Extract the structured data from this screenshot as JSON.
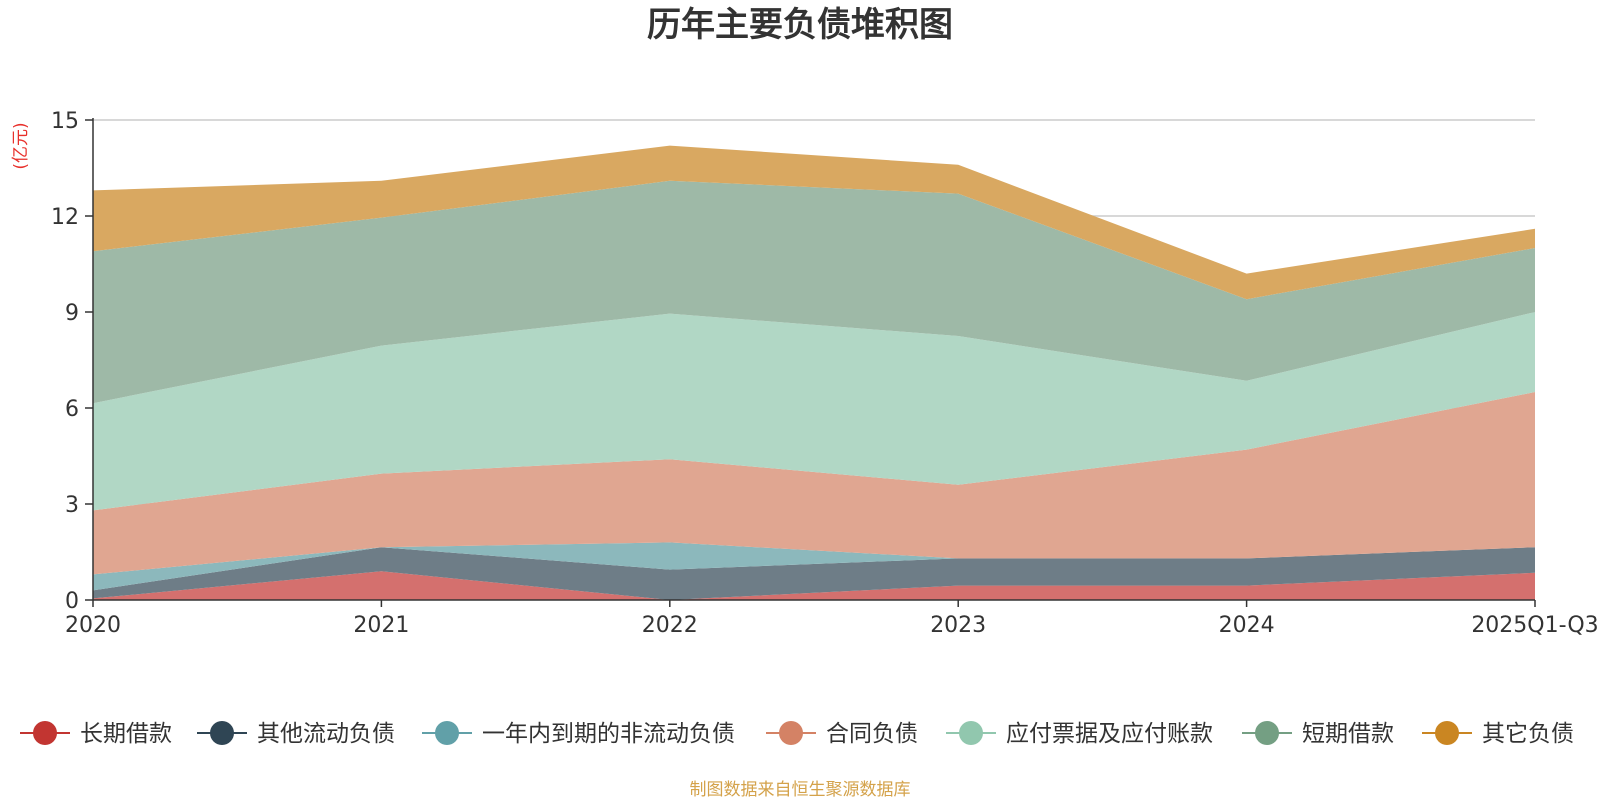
{
  "chart_data": {
    "type": "area",
    "stacked": true,
    "title": "历年主要负债堆积图",
    "unit_label": "(亿元)",
    "categories": [
      "2020",
      "2021",
      "2022",
      "2023",
      "2024",
      "2025Q1-Q3"
    ],
    "ylim": [
      0,
      15
    ],
    "yticks": [
      0,
      3,
      6,
      9,
      12,
      15
    ],
    "grid": true,
    "legend_position": "bottom",
    "series": [
      {
        "name": "长期借款",
        "color": "#c23531",
        "area_color": "#d4706e",
        "values": [
          0.05,
          0.9,
          0.0,
          0.45,
          0.45,
          0.85
        ]
      },
      {
        "name": "其他流动负债",
        "color": "#2f4554",
        "area_color": "#6e7d87",
        "values": [
          0.25,
          0.75,
          0.95,
          0.85,
          0.85,
          0.8
        ]
      },
      {
        "name": "一年内到期的非流动负债",
        "color": "#61a0a8",
        "area_color": "#8cb8bc",
        "values": [
          0.5,
          0.0,
          0.85,
          0.0,
          0.0,
          0.0
        ]
      },
      {
        "name": "合同负债",
        "color": "#d48265",
        "area_color": "#e0a691",
        "values": [
          2.0,
          2.3,
          2.6,
          2.3,
          3.4,
          4.85
        ]
      },
      {
        "name": "应付票据及应付账款",
        "color": "#91c7ae",
        "area_color": "#b1d7c5",
        "values": [
          3.35,
          4.0,
          4.55,
          4.65,
          2.15,
          2.5
        ]
      },
      {
        "name": "短期借款",
        "color": "#749f83",
        "area_color": "#9eb9a7",
        "values": [
          4.75,
          4.0,
          4.15,
          4.45,
          2.55,
          2.0
        ]
      },
      {
        "name": "其它负债",
        "color": "#ca8622",
        "area_color": "#d9a861",
        "values": [
          1.9,
          1.15,
          1.1,
          0.9,
          0.8,
          0.6
        ]
      }
    ]
  },
  "footer": {
    "source": "制图数据来自恒生聚源数据库"
  }
}
